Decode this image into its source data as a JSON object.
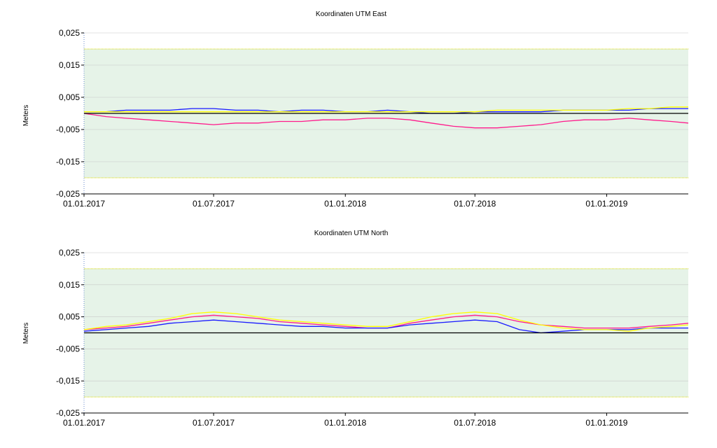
{
  "colors": {
    "band": "#e6f3e8",
    "limit": "#ffff00",
    "zero": "#000000",
    "axis": "#000000",
    "grid": "#c8c8c8",
    "series": [
      "#ff1a8c",
      "#1a1aff",
      "#ffff00"
    ]
  },
  "chart_data": [
    {
      "type": "line",
      "title": "Koordinaten UTM East",
      "ylabel": "Meters",
      "xlabel": "",
      "xlim": [
        "2017-01-01",
        "2019-04-25"
      ],
      "ylim": [
        -0.025,
        0.025
      ],
      "yticks": [
        "0,025",
        "0,015",
        "0,005",
        "-0,005",
        "-0,015",
        "-0,025"
      ],
      "ytick_values": [
        0.025,
        0.015,
        0.005,
        -0.005,
        -0.015,
        -0.025
      ],
      "xticks": [
        "01.01.2017",
        "01.07.2017",
        "01.01.2018",
        "01.07.2018",
        "01.01.2019"
      ],
      "xtick_dates": [
        "2017-01-01",
        "2017-07-01",
        "2018-01-01",
        "2018-07-01",
        "2019-01-01"
      ],
      "band": [
        -0.02,
        0.02
      ],
      "limit_lines": [
        0.02,
        -0.02
      ],
      "zero_line": 0.0,
      "grid": true,
      "series": [
        {
          "color": "#ff1a8c",
          "x": [
            "2017-01-01",
            "2017-02-01",
            "2017-03-01",
            "2017-04-01",
            "2017-05-01",
            "2017-06-01",
            "2017-07-01",
            "2017-08-01",
            "2017-09-01",
            "2017-10-01",
            "2017-11-01",
            "2017-12-01",
            "2018-01-01",
            "2018-02-01",
            "2018-03-01",
            "2018-04-01",
            "2018-05-01",
            "2018-06-01",
            "2018-07-01",
            "2018-08-01",
            "2018-09-01",
            "2018-10-01",
            "2018-11-01",
            "2018-12-01",
            "2019-01-01",
            "2019-02-01",
            "2019-03-01",
            "2019-04-01",
            "2019-04-25"
          ],
          "y": [
            0.0,
            -0.001,
            -0.0015,
            -0.002,
            -0.0025,
            -0.003,
            -0.0035,
            -0.003,
            -0.003,
            -0.0025,
            -0.0025,
            -0.002,
            -0.002,
            -0.0015,
            -0.0015,
            -0.002,
            -0.003,
            -0.004,
            -0.0045,
            -0.0045,
            -0.004,
            -0.0035,
            -0.0025,
            -0.002,
            -0.002,
            -0.0015,
            -0.002,
            -0.0025,
            -0.003
          ]
        },
        {
          "color": "#1a1aff",
          "x": [
            "2017-01-01",
            "2017-02-01",
            "2017-03-01",
            "2017-04-01",
            "2017-05-01",
            "2017-06-01",
            "2017-07-01",
            "2017-08-01",
            "2017-09-01",
            "2017-10-01",
            "2017-11-01",
            "2017-12-01",
            "2018-01-01",
            "2018-02-01",
            "2018-03-01",
            "2018-04-01",
            "2018-05-01",
            "2018-06-01",
            "2018-07-01",
            "2018-08-01",
            "2018-09-01",
            "2018-10-01",
            "2018-11-01",
            "2018-12-01",
            "2019-01-01",
            "2019-02-01",
            "2019-03-01",
            "2019-04-01",
            "2019-04-25"
          ],
          "y": [
            0.0005,
            0.0005,
            0.001,
            0.001,
            0.001,
            0.0015,
            0.0015,
            0.001,
            0.001,
            0.0005,
            0.001,
            0.001,
            0.0005,
            0.0005,
            0.001,
            0.0005,
            0.0,
            0.0,
            0.0005,
            0.0005,
            0.0005,
            0.0005,
            0.001,
            0.001,
            0.001,
            0.001,
            0.0015,
            0.0015,
            0.0015
          ]
        },
        {
          "color": "#ffff00",
          "x": [
            "2017-01-01",
            "2017-02-01",
            "2017-03-01",
            "2017-04-01",
            "2017-05-01",
            "2017-06-01",
            "2017-07-01",
            "2017-08-01",
            "2017-09-01",
            "2017-10-01",
            "2017-11-01",
            "2017-12-01",
            "2018-01-01",
            "2018-02-01",
            "2018-03-01",
            "2018-04-01",
            "2018-05-01",
            "2018-06-01",
            "2018-07-01",
            "2018-08-01",
            "2018-09-01",
            "2018-10-01",
            "2018-11-01",
            "2018-12-01",
            "2019-01-01",
            "2019-02-01",
            "2019-03-01",
            "2019-04-01",
            "2019-04-25"
          ],
          "y": [
            0.0005,
            0.0005,
            0.0005,
            0.0005,
            0.0005,
            0.0005,
            0.0005,
            0.0005,
            0.0005,
            0.0005,
            0.0005,
            0.0005,
            0.0005,
            0.0005,
            0.0005,
            0.0005,
            0.0005,
            0.0005,
            0.0005,
            0.001,
            0.001,
            0.001,
            0.001,
            0.001,
            0.001,
            0.0015,
            0.0015,
            0.002,
            0.002
          ]
        }
      ]
    },
    {
      "type": "line",
      "title": "Koordinaten UTM North",
      "ylabel": "Meters",
      "xlabel": "",
      "xlim": [
        "2017-01-01",
        "2019-04-25"
      ],
      "ylim": [
        -0.025,
        0.025
      ],
      "yticks": [
        "0,025",
        "0,015",
        "0,005",
        "-0,005",
        "-0,015",
        "-0,025"
      ],
      "ytick_values": [
        0.025,
        0.015,
        0.005,
        -0.005,
        -0.015,
        -0.025
      ],
      "xticks": [
        "01.01.2017",
        "01.07.2017",
        "01.01.2018",
        "01.07.2018",
        "01.01.2019"
      ],
      "xtick_dates": [
        "2017-01-01",
        "2017-07-01",
        "2018-01-01",
        "2018-07-01",
        "2019-01-01"
      ],
      "band": [
        -0.02,
        0.02
      ],
      "limit_lines": [
        0.02,
        -0.02
      ],
      "zero_line": 0.0,
      "grid": true,
      "series": [
        {
          "color": "#ff1a8c",
          "x": [
            "2017-01-01",
            "2017-02-01",
            "2017-03-01",
            "2017-04-01",
            "2017-05-01",
            "2017-06-01",
            "2017-07-01",
            "2017-08-01",
            "2017-09-01",
            "2017-10-01",
            "2017-11-01",
            "2017-12-01",
            "2018-01-01",
            "2018-02-01",
            "2018-03-01",
            "2018-04-01",
            "2018-05-01",
            "2018-06-01",
            "2018-07-01",
            "2018-08-01",
            "2018-09-01",
            "2018-10-01",
            "2018-11-01",
            "2018-12-01",
            "2019-01-01",
            "2019-02-01",
            "2019-03-01",
            "2019-04-01",
            "2019-04-25"
          ],
          "y": [
            0.001,
            0.0015,
            0.002,
            0.003,
            0.004,
            0.005,
            0.0055,
            0.005,
            0.0045,
            0.0035,
            0.003,
            0.0025,
            0.002,
            0.0015,
            0.0015,
            0.003,
            0.004,
            0.005,
            0.0055,
            0.005,
            0.0035,
            0.0025,
            0.002,
            0.0015,
            0.0015,
            0.0015,
            0.002,
            0.0025,
            0.003
          ]
        },
        {
          "color": "#1a1aff",
          "x": [
            "2017-01-01",
            "2017-02-01",
            "2017-03-01",
            "2017-04-01",
            "2017-05-01",
            "2017-06-01",
            "2017-07-01",
            "2017-08-01",
            "2017-09-01",
            "2017-10-01",
            "2017-11-01",
            "2017-12-01",
            "2018-01-01",
            "2018-02-01",
            "2018-03-01",
            "2018-04-01",
            "2018-05-01",
            "2018-06-01",
            "2018-07-01",
            "2018-08-01",
            "2018-09-01",
            "2018-10-01",
            "2018-11-01",
            "2018-12-01",
            "2019-01-01",
            "2019-02-01",
            "2019-03-01",
            "2019-04-01",
            "2019-04-25"
          ],
          "y": [
            0.0005,
            0.001,
            0.0015,
            0.002,
            0.003,
            0.0035,
            0.004,
            0.0035,
            0.003,
            0.0025,
            0.002,
            0.002,
            0.0015,
            0.0015,
            0.0015,
            0.0025,
            0.003,
            0.0035,
            0.004,
            0.0035,
            0.001,
            0.0,
            0.0005,
            0.001,
            0.001,
            0.001,
            0.0015,
            0.0015,
            0.0015
          ]
        },
        {
          "color": "#ffff00",
          "x": [
            "2017-01-01",
            "2017-02-01",
            "2017-03-01",
            "2017-04-01",
            "2017-05-01",
            "2017-06-01",
            "2017-07-01",
            "2017-08-01",
            "2017-09-01",
            "2017-10-01",
            "2017-11-01",
            "2017-12-01",
            "2018-01-01",
            "2018-02-01",
            "2018-03-01",
            "2018-04-01",
            "2018-05-01",
            "2018-06-01",
            "2018-07-01",
            "2018-08-01",
            "2018-09-01",
            "2018-10-01",
            "2018-11-01",
            "2018-12-01",
            "2019-01-01",
            "2019-02-01",
            "2019-03-01",
            "2019-04-01",
            "2019-04-25"
          ],
          "y": [
            0.001,
            0.002,
            0.0025,
            0.0035,
            0.0045,
            0.006,
            0.0065,
            0.006,
            0.005,
            0.004,
            0.0035,
            0.003,
            0.0025,
            0.002,
            0.002,
            0.0035,
            0.005,
            0.006,
            0.0065,
            0.006,
            0.004,
            0.0025,
            0.0015,
            0.001,
            0.001,
            0.0005,
            0.0015,
            0.002,
            0.0025
          ]
        }
      ]
    }
  ]
}
